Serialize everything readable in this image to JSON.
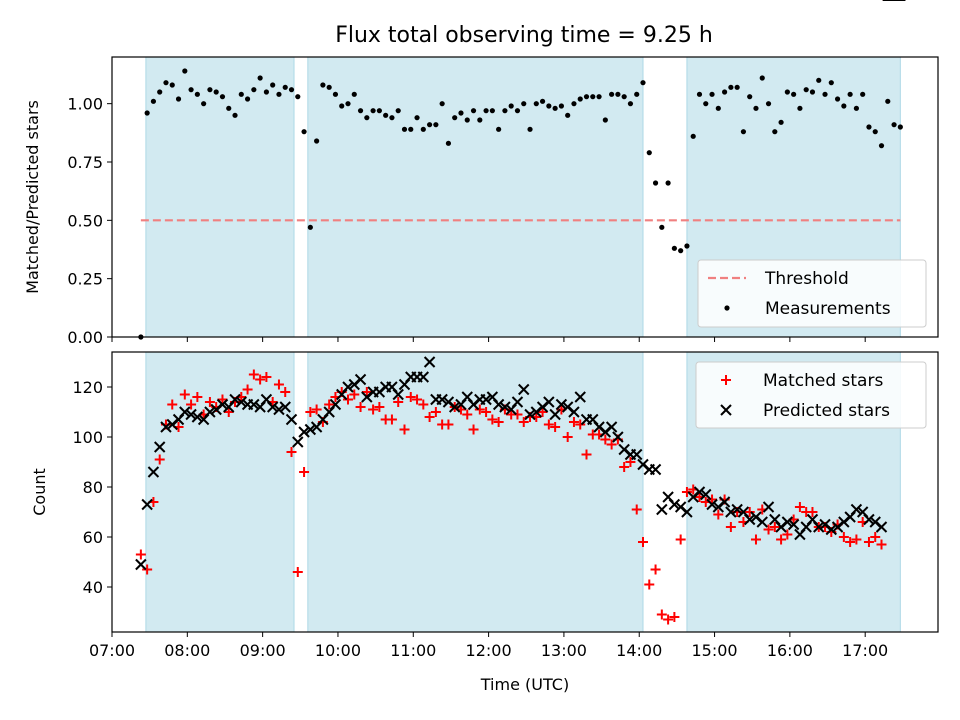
{
  "title": "Flux total observing time = 9.25 h",
  "colors": {
    "shade": "#add8e6",
    "threshold": "#f08080",
    "matched": "#ff0000",
    "predicted": "#000000",
    "measurement": "#000000"
  },
  "chart_data": [
    {
      "type": "scatter",
      "ylabel": "Matched/Predicted stars",
      "xlim": [
        "07:00",
        "17:58"
      ],
      "ylim": [
        0,
        1.2
      ],
      "yticks": [
        "0.00",
        "0.25",
        "0.50",
        "0.75",
        "1.00"
      ],
      "yticks_values": [
        0,
        0.25,
        0.5,
        0.75,
        1.0
      ],
      "shaded_intervals": [
        [
          "07:27",
          "09:25"
        ],
        [
          "09:36",
          "14:03"
        ],
        [
          "14:38",
          "17:28"
        ]
      ],
      "threshold": {
        "value": 0.5,
        "x_range": [
          "07:23",
          "17:28"
        ]
      },
      "legend": [
        "Threshold",
        "Measurements"
      ],
      "legend_position": "lower right",
      "series": [
        {
          "name": "Measurements",
          "x": [
            "07:23",
            "07:28",
            "07:33",
            "07:38",
            "07:43",
            "07:48",
            "07:53",
            "07:58",
            "08:03",
            "08:08",
            "08:13",
            "08:18",
            "08:23",
            "08:28",
            "08:33",
            "08:38",
            "08:43",
            "08:48",
            "08:53",
            "08:58",
            "09:03",
            "09:08",
            "09:13",
            "09:18",
            "09:23",
            "09:28",
            "09:33",
            "09:38",
            "09:43",
            "09:48",
            "09:53",
            "09:58",
            "10:03",
            "10:08",
            "10:13",
            "10:18",
            "10:23",
            "10:28",
            "10:33",
            "10:38",
            "10:43",
            "10:48",
            "10:53",
            "10:58",
            "11:03",
            "11:08",
            "11:13",
            "11:18",
            "11:23",
            "11:28",
            "11:33",
            "11:38",
            "11:43",
            "11:48",
            "11:53",
            "11:58",
            "12:03",
            "12:08",
            "12:13",
            "12:18",
            "12:23",
            "12:28",
            "12:33",
            "12:38",
            "12:43",
            "12:48",
            "12:53",
            "12:58",
            "13:03",
            "13:08",
            "13:13",
            "13:18",
            "13:23",
            "13:28",
            "13:33",
            "13:38",
            "13:43",
            "13:48",
            "13:53",
            "13:58",
            "14:03",
            "14:08",
            "14:13",
            "14:18",
            "14:23",
            "14:28",
            "14:33",
            "14:38",
            "14:43",
            "14:48",
            "14:53",
            "14:58",
            "15:03",
            "15:08",
            "15:13",
            "15:18",
            "15:23",
            "15:28",
            "15:33",
            "15:38",
            "15:43",
            "15:48",
            "15:53",
            "15:58",
            "16:03",
            "16:08",
            "16:13",
            "16:18",
            "16:23",
            "16:28",
            "16:33",
            "16:38",
            "16:43",
            "16:48",
            "16:53",
            "16:58",
            "17:03",
            "17:08",
            "17:13",
            "17:18",
            "17:23",
            "17:28"
          ],
          "y": [
            0.0,
            0.96,
            1.01,
            1.05,
            1.09,
            1.08,
            1.02,
            1.14,
            1.06,
            1.04,
            1.0,
            1.06,
            1.05,
            1.03,
            0.98,
            0.95,
            1.04,
            1.02,
            1.06,
            1.11,
            1.05,
            1.08,
            1.04,
            1.07,
            1.06,
            1.03,
            0.88,
            0.47,
            0.84,
            1.08,
            1.07,
            1.04,
            0.99,
            1.0,
            1.04,
            0.97,
            0.94,
            0.97,
            0.97,
            0.95,
            0.94,
            0.97,
            0.89,
            0.89,
            0.94,
            0.89,
            0.91,
            0.91,
            1.0,
            0.83,
            0.94,
            0.96,
            0.93,
            0.97,
            0.93,
            0.97,
            0.97,
            0.89,
            0.97,
            0.99,
            0.97,
            1.0,
            0.89,
            1.0,
            1.01,
            0.99,
            0.98,
            0.99,
            0.95,
            1.0,
            1.02,
            1.03,
            1.03,
            1.03,
            0.93,
            1.04,
            1.04,
            1.03,
            1.0,
            1.04,
            1.09,
            0.79,
            0.66,
            0.47,
            0.66,
            0.38,
            0.37,
            0.39,
            0.86,
            1.04,
            1.0,
            1.04,
            0.98,
            1.05,
            1.07,
            1.07,
            0.88,
            1.03,
            0.98,
            1.11,
            1.0,
            0.88,
            0.92,
            1.05,
            1.04,
            0.98,
            1.06,
            1.05,
            1.1,
            1.04,
            1.09,
            1.02,
            0.99,
            1.04,
            0.98,
            1.04,
            0.9,
            0.88,
            0.82,
            1.01,
            0.91,
            0.9
          ]
        }
      ]
    },
    {
      "type": "scatter",
      "ylabel": "Count",
      "xlabel": "Time (UTC)",
      "xlim": [
        "07:00",
        "17:58"
      ],
      "ylim": [
        22,
        134
      ],
      "xticks": [
        "07:00",
        "08:00",
        "09:00",
        "10:00",
        "11:00",
        "12:00",
        "13:00",
        "14:00",
        "15:00",
        "16:00",
        "17:00"
      ],
      "yticks": [
        "40",
        "60",
        "80",
        "100",
        "120"
      ],
      "yticks_values": [
        40,
        60,
        80,
        100,
        120
      ],
      "shaded_intervals": [
        [
          "07:27",
          "09:25"
        ],
        [
          "09:36",
          "14:03"
        ],
        [
          "14:38",
          "17:28"
        ]
      ],
      "legend": [
        "Matched stars",
        "Predicted stars"
      ],
      "legend_position": "upper right",
      "x": [
        "07:23",
        "07:28",
        "07:33",
        "07:38",
        "07:43",
        "07:48",
        "07:53",
        "07:58",
        "08:03",
        "08:08",
        "08:13",
        "08:18",
        "08:23",
        "08:28",
        "08:33",
        "08:38",
        "08:43",
        "08:48",
        "08:53",
        "08:58",
        "09:03",
        "09:08",
        "09:13",
        "09:18",
        "09:23",
        "09:28",
        "09:33",
        "09:38",
        "09:43",
        "09:48",
        "09:53",
        "09:58",
        "10:03",
        "10:08",
        "10:13",
        "10:18",
        "10:23",
        "10:28",
        "10:33",
        "10:38",
        "10:43",
        "10:48",
        "10:53",
        "10:58",
        "11:03",
        "11:08",
        "11:13",
        "11:18",
        "11:23",
        "11:28",
        "11:33",
        "11:38",
        "11:43",
        "11:48",
        "11:53",
        "11:58",
        "12:03",
        "12:08",
        "12:13",
        "12:18",
        "12:23",
        "12:28",
        "12:33",
        "12:38",
        "12:43",
        "12:48",
        "12:53",
        "12:58",
        "13:03",
        "13:08",
        "13:13",
        "13:18",
        "13:23",
        "13:28",
        "13:33",
        "13:38",
        "13:43",
        "13:48",
        "13:53",
        "13:58",
        "14:03",
        "14:08",
        "14:13",
        "14:18",
        "14:23",
        "14:28",
        "14:33",
        "14:38",
        "14:43",
        "14:48",
        "14:53",
        "14:58",
        "15:03",
        "15:08",
        "15:13",
        "15:18",
        "15:23",
        "15:28",
        "15:33",
        "15:38",
        "15:43",
        "15:48",
        "15:53",
        "15:58",
        "16:03",
        "16:08",
        "16:13",
        "16:18",
        "16:23",
        "16:28",
        "16:33",
        "16:38",
        "16:43",
        "16:48",
        "16:53",
        "16:58",
        "17:03",
        "17:08",
        "17:13",
        "17:18",
        "17:23",
        "17:28"
      ],
      "series": [
        {
          "name": "Matched stars",
          "marker": "plus",
          "y": [
            53,
            47,
            74,
            91,
            105,
            113,
            104,
            117,
            113,
            116,
            109,
            114,
            112,
            115,
            110,
            114,
            116,
            119,
            125,
            123,
            124,
            114,
            121,
            118,
            94,
            46,
            86,
            110,
            111,
            106,
            113,
            116,
            118,
            115,
            117,
            112,
            118,
            111,
            112,
            107,
            107,
            114,
            103,
            116,
            115,
            113,
            108,
            110,
            105,
            105,
            112,
            111,
            109,
            103,
            111,
            110,
            107,
            106,
            111,
            109,
            109,
            106,
            108,
            108,
            110,
            105,
            104,
            111,
            100,
            106,
            105,
            93,
            101,
            101,
            99,
            97,
            99,
            88,
            90,
            71,
            58,
            41,
            47,
            29,
            27,
            28,
            59,
            78,
            79,
            76,
            74,
            75,
            69,
            75,
            64,
            70,
            66,
            70,
            59,
            71,
            63,
            64,
            59,
            61,
            67,
            72,
            70,
            70,
            64,
            64,
            62,
            65,
            60,
            58,
            59,
            66,
            58,
            60,
            57
          ],
          "y_note_visible": true
        },
        {
          "name": "Predicted stars",
          "marker": "x",
          "y": [
            49,
            73,
            86,
            96,
            104,
            105,
            107,
            110,
            109,
            108,
            107,
            110,
            111,
            113,
            112,
            115,
            114,
            113,
            113,
            112,
            115,
            112,
            111,
            112,
            107,
            98,
            102,
            103,
            104,
            107,
            110,
            113,
            117,
            120,
            121,
            123,
            116,
            118,
            118,
            120,
            120,
            117,
            121,
            124,
            124,
            124,
            130,
            115,
            115,
            114,
            112,
            113,
            116,
            113,
            115,
            115,
            116,
            113,
            112,
            111,
            114,
            119,
            109,
            110,
            112,
            114,
            109,
            113,
            112,
            110,
            116,
            107,
            107,
            104,
            102,
            104,
            100,
            95,
            93,
            93,
            89,
            87,
            87,
            71,
            76,
            73,
            72,
            70,
            76,
            78,
            77,
            73,
            72,
            74,
            70,
            71,
            70,
            67,
            68,
            66,
            72,
            67,
            64,
            66,
            65,
            61,
            64,
            67,
            64,
            65,
            63,
            64,
            66,
            68,
            71,
            70,
            67,
            66,
            64
          ]
        }
      ]
    }
  ]
}
